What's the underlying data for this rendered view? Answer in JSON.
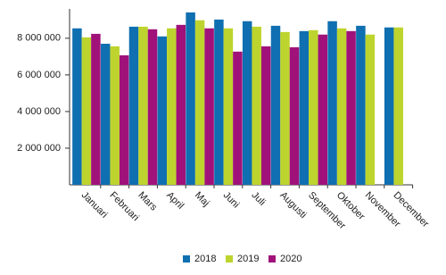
{
  "chart_data": {
    "type": "bar",
    "categories": [
      "Januari",
      "Februari",
      "Mars",
      "April",
      "Maj",
      "Juni",
      "Juli",
      "Augusti",
      "September",
      "Oktober",
      "November",
      "December"
    ],
    "series": [
      {
        "name": "2018",
        "color": "#0f6fb0",
        "values": [
          8540000,
          7700000,
          8630000,
          8100000,
          9410000,
          9020000,
          8930000,
          8680000,
          8390000,
          8930000,
          8680000,
          8590000
        ]
      },
      {
        "name": "2019",
        "color": "#bed42e",
        "values": [
          8050000,
          7560000,
          8630000,
          8540000,
          8980000,
          8540000,
          8630000,
          8340000,
          8440000,
          8540000,
          8200000,
          8590000
        ]
      },
      {
        "name": "2020",
        "color": "#a0127a",
        "values": [
          8240000,
          7070000,
          8490000,
          8730000,
          8540000,
          7270000,
          7560000,
          7510000,
          8200000,
          8390000,
          null,
          null
        ]
      }
    ],
    "ylim": [
      0,
      9600000
    ],
    "yticks": [
      {
        "value": 2000000,
        "label": "2 000 000"
      },
      {
        "value": 4000000,
        "label": "4 000 000"
      },
      {
        "value": 6000000,
        "label": "6 000 000"
      },
      {
        "value": 8000000,
        "label": "8 000 000"
      }
    ],
    "legend": "bottom"
  }
}
